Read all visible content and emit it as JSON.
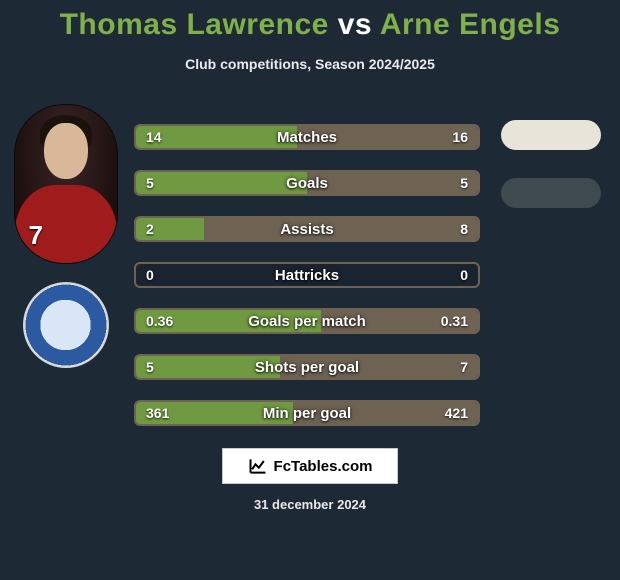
{
  "title": {
    "player1": "Thomas Lawrence",
    "vs": "vs",
    "player2": "Arne Engels",
    "player1_color": "#7fb04a",
    "vs_color": "#ffffff",
    "player2_color": "#7fb04a",
    "fontsize": 30
  },
  "subtitle": "Club competitions, Season 2024/2025",
  "player1_avatar": {
    "shirt_number": "7",
    "shirt_color": "#a01c1c"
  },
  "pills": [
    {
      "color": "#e8e4da"
    },
    {
      "color": "#3f4a4e"
    }
  ],
  "bars": {
    "track_border_color": "#6e6353",
    "track_bg_color": "#1a2430",
    "left_fill_color": "#6f9a41",
    "right_fill_color": "#6e6353",
    "label_fontsize": 15,
    "value_fontsize": 14,
    "rows": [
      {
        "label": "Matches",
        "left_text": "14",
        "right_text": "16",
        "left_pct": 47,
        "right_pct": 53
      },
      {
        "label": "Goals",
        "left_text": "5",
        "right_text": "5",
        "left_pct": 50,
        "right_pct": 50
      },
      {
        "label": "Assists",
        "left_text": "2",
        "right_text": "8",
        "left_pct": 20,
        "right_pct": 80
      },
      {
        "label": "Hattricks",
        "left_text": "0",
        "right_text": "0",
        "left_pct": 0,
        "right_pct": 0
      },
      {
        "label": "Goals per match",
        "left_text": "0.36",
        "right_text": "0.31",
        "left_pct": 54,
        "right_pct": 46
      },
      {
        "label": "Shots per goal",
        "left_text": "5",
        "right_text": "7",
        "left_pct": 42,
        "right_pct": 58
      },
      {
        "label": "Min per goal",
        "left_text": "361",
        "right_text": "421",
        "left_pct": 46,
        "right_pct": 54
      }
    ]
  },
  "footer": {
    "brand": "FcTables.com",
    "date": "31 december 2024"
  },
  "background_color": "#1e2936"
}
